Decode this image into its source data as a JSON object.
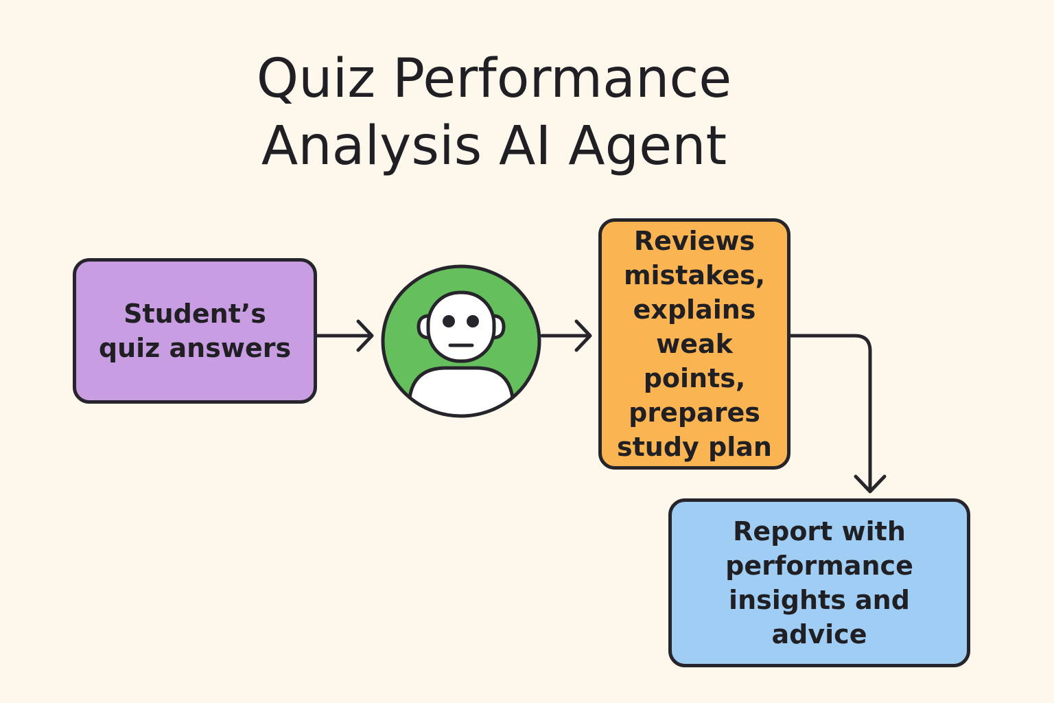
{
  "title": {
    "lines": [
      "Quiz Performance",
      "Analysis AI Agent"
    ]
  },
  "nodes": {
    "input": {
      "lines": [
        "Student’s",
        "quiz answers"
      ],
      "color": "#c89de2"
    },
    "agent": {
      "icon": "robot-agent-icon",
      "color": "#66bf5d"
    },
    "process": {
      "lines": [
        "Reviews",
        "mistakes,",
        "explains",
        "weak points,",
        "prepares",
        "study plan"
      ],
      "color": "#fbb452"
    },
    "output": {
      "lines": [
        "Report with",
        "performance",
        "insights and",
        "advice"
      ],
      "color": "#9fcdf3"
    }
  },
  "edges": [
    {
      "from": "input",
      "to": "agent"
    },
    {
      "from": "agent",
      "to": "process"
    },
    {
      "from": "process",
      "to": "output"
    }
  ],
  "colors": {
    "background": "#fdf7ec",
    "stroke": "#26252b"
  }
}
